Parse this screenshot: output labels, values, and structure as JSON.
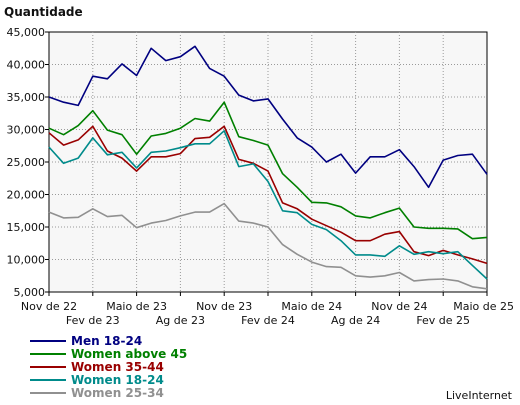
{
  "chart_data": {
    "type": "line",
    "ylabel": "Quantidade",
    "ylim": [
      5000,
      45000
    ],
    "yticks": [
      5000,
      10000,
      15000,
      20000,
      25000,
      30000,
      35000,
      40000,
      45000
    ],
    "ytick_labels": [
      "5,000",
      "10,000",
      "15,000",
      "20,000",
      "25,000",
      "30,000",
      "35,000",
      "40,000",
      "45,000"
    ],
    "x_tick_labels_top": [
      "Nov de 22",
      "Maio de 23",
      "Nov de 23",
      "Maio de 24",
      "Nov de 24",
      "Maio de 25"
    ],
    "x_tick_labels_bottom": [
      "Fev de 23",
      "Ag de 23",
      "Fev de 24",
      "Ag de 24",
      "Fev de 25"
    ],
    "grid": true,
    "legend_position": "bottom-left",
    "brand": "LiveInternet",
    "series": [
      {
        "name": "Men 18-24",
        "color": "#000080",
        "values": [
          35000,
          34200,
          33700,
          38200,
          37800,
          40100,
          38300,
          42500,
          40600,
          41200,
          42800,
          39400,
          38200,
          35300,
          34400,
          34700,
          31600,
          28700,
          27300,
          25000,
          26200,
          23300,
          25800,
          25800,
          26900,
          24300,
          21100,
          25300,
          26000,
          26200,
          23100
        ]
      },
      {
        "name": "Women above 45",
        "color": "#008000",
        "values": [
          30200,
          29200,
          30600,
          32900,
          29900,
          29200,
          26200,
          29000,
          29400,
          30200,
          31700,
          31300,
          34200,
          28900,
          28300,
          27600,
          23200,
          21100,
          18800,
          18700,
          18100,
          16700,
          16400,
          17200,
          17900,
          15000,
          14800,
          14800,
          14700,
          13200,
          13400
        ]
      },
      {
        "name": "Women 35-44",
        "color": "#990000",
        "values": [
          29500,
          27600,
          28400,
          30500,
          26700,
          25600,
          23600,
          25800,
          25800,
          26300,
          28600,
          28800,
          30500,
          25400,
          24800,
          23600,
          18700,
          17800,
          16200,
          15200,
          14200,
          12900,
          12900,
          13900,
          14300,
          11200,
          10600,
          11400,
          10700,
          10100,
          9400
        ]
      },
      {
        "name": "Women 18-24",
        "color": "#008B8B",
        "values": [
          27300,
          24800,
          25600,
          28700,
          26100,
          26500,
          24100,
          26500,
          26700,
          27200,
          27800,
          27800,
          29800,
          24300,
          24700,
          22000,
          17500,
          17200,
          15400,
          14600,
          12900,
          10700,
          10700,
          10500,
          12100,
          10800,
          11200,
          10900,
          11200,
          9100,
          7000
        ]
      },
      {
        "name": "Women 25-34",
        "color": "#909090",
        "values": [
          17300,
          16400,
          16500,
          17800,
          16600,
          16800,
          14900,
          15600,
          16000,
          16700,
          17300,
          17300,
          18600,
          15900,
          15600,
          15000,
          12300,
          10800,
          9600,
          8900,
          8800,
          7500,
          7300,
          7500,
          8000,
          6700,
          6900,
          7000,
          6700,
          5800,
          5500
        ]
      }
    ]
  }
}
